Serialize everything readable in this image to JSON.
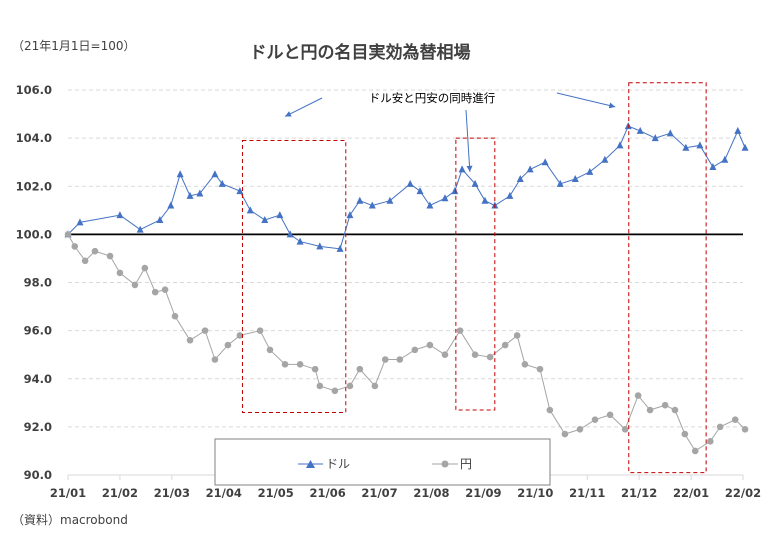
{
  "chart_data": {
    "type": "line",
    "title": "ドルと円の名目実効為替相場",
    "ylabel": "（21年1月1日=100）",
    "source": "（資料）macrobond",
    "xlabel": "",
    "x_unit": "months since 21/01",
    "xlim": [
      0,
      13
    ],
    "ylim": [
      90,
      106
    ],
    "y_ticks": [
      "90.0",
      "92.0",
      "94.0",
      "96.0",
      "98.0",
      "100.0",
      "102.0",
      "104.0",
      "106.0"
    ],
    "x_ticks": [
      "21/01",
      "21/02",
      "21/03",
      "21/04",
      "21/05",
      "21/06",
      "21/07",
      "21/08",
      "21/09",
      "21/10",
      "21/11",
      "21/12",
      "22/01",
      "22/02"
    ],
    "grid": "horizontal dashed",
    "reference_line": 100,
    "legend": {
      "placement": "bottom-left",
      "entries": [
        "ドル",
        "円"
      ]
    },
    "annotation": {
      "text": "ドル安と円安の同時進行",
      "boxes": [
        {
          "x": [
            3.36,
            5.35
          ],
          "y": [
            92.6,
            103.9
          ]
        },
        {
          "x": [
            7.47,
            8.22
          ],
          "y": [
            92.7,
            104.0
          ]
        },
        {
          "x": [
            10.8,
            12.29
          ],
          "y": [
            90.1,
            106.3
          ]
        }
      ],
      "arrow_targets": [
        {
          "x": 4.18,
          "y": 104.9
        },
        {
          "x": 7.74,
          "y": 102.6
        },
        {
          "x": 10.54,
          "y": 105.3
        }
      ]
    },
    "series": [
      {
        "name": "ドル",
        "color": "#4472C4",
        "marker": "triangle",
        "x": [
          0,
          0.23,
          1.0,
          1.39,
          1.77,
          1.98,
          2.16,
          2.35,
          2.54,
          2.83,
          2.97,
          3.31,
          3.51,
          3.79,
          4.08,
          4.28,
          4.47,
          4.85,
          5.24,
          5.43,
          5.62,
          5.86,
          6.2,
          6.59,
          6.78,
          6.97,
          7.26,
          7.45,
          7.59,
          7.84,
          8.03,
          8.22,
          8.51,
          8.71,
          8.9,
          9.19,
          9.48,
          9.77,
          10.05,
          10.34,
          10.63,
          10.79,
          11.02,
          11.31,
          11.6,
          11.9,
          12.17,
          12.42,
          12.65,
          12.9,
          13.04
        ],
        "values": [
          100.0,
          100.5,
          100.8,
          100.2,
          100.6,
          101.2,
          102.5,
          101.6,
          101.7,
          102.5,
          102.1,
          101.8,
          101.0,
          100.6,
          100.8,
          100.0,
          99.7,
          99.5,
          99.4,
          100.8,
          101.4,
          101.2,
          101.4,
          102.1,
          101.8,
          101.2,
          101.5,
          101.8,
          102.7,
          102.1,
          101.4,
          101.2,
          101.6,
          102.3,
          102.7,
          103.0,
          102.1,
          102.3,
          102.6,
          103.1,
          103.7,
          104.5,
          104.3,
          104.0,
          104.2,
          103.6,
          103.7,
          102.8,
          103.1,
          104.3,
          103.6
        ]
      },
      {
        "name": "円",
        "color": "#A5A5A5",
        "marker": "circle",
        "x": [
          0,
          0.13,
          0.33,
          0.52,
          0.81,
          1.0,
          1.29,
          1.48,
          1.68,
          1.87,
          2.06,
          2.35,
          2.64,
          2.83,
          3.08,
          3.31,
          3.7,
          3.89,
          4.18,
          4.47,
          4.76,
          4.85,
          5.14,
          5.43,
          5.62,
          5.91,
          6.11,
          6.39,
          6.68,
          6.97,
          7.26,
          7.55,
          7.84,
          8.13,
          8.42,
          8.65,
          8.8,
          9.09,
          9.28,
          9.57,
          9.86,
          10.15,
          10.44,
          10.73,
          10.98,
          11.21,
          11.5,
          11.69,
          11.88,
          12.08,
          12.37,
          12.56,
          12.85,
          13.04
        ],
        "values": [
          100.0,
          99.5,
          98.9,
          99.3,
          99.1,
          98.4,
          97.9,
          98.6,
          97.6,
          97.7,
          96.6,
          95.6,
          96.0,
          94.8,
          95.4,
          95.8,
          96.0,
          95.2,
          94.6,
          94.6,
          94.4,
          93.7,
          93.5,
          93.7,
          94.4,
          93.7,
          94.8,
          94.8,
          95.2,
          95.4,
          95.0,
          96.0,
          95.0,
          94.9,
          95.4,
          95.8,
          94.6,
          94.4,
          92.7,
          91.7,
          91.9,
          92.3,
          92.5,
          91.9,
          93.3,
          92.7,
          92.9,
          92.7,
          91.7,
          91.0,
          91.4,
          92.0,
          92.3,
          91.9
        ]
      }
    ]
  }
}
